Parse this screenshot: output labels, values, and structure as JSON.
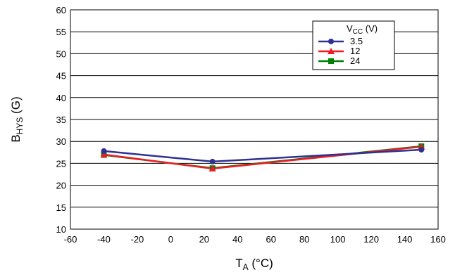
{
  "chart_data": {
    "type": "line",
    "title": "",
    "xlabel": {
      "main": "T",
      "sub": "A",
      "rest": " (°C)"
    },
    "ylabel": {
      "main": "B",
      "sub": "HYS",
      "rest": " (G)"
    },
    "xlim": [
      -60,
      160
    ],
    "ylim": [
      10,
      60
    ],
    "xticks": [
      -60,
      -40,
      -20,
      0,
      20,
      40,
      60,
      80,
      100,
      120,
      140,
      160
    ],
    "yticks": [
      10,
      15,
      20,
      25,
      30,
      35,
      40,
      45,
      50,
      55,
      60
    ],
    "grid": {
      "horizontal": true,
      "vertical": false
    },
    "legend": {
      "position": "top-right",
      "title": {
        "main": "V",
        "sub": "CC",
        "rest": " (V)"
      }
    },
    "x": [
      -40,
      25,
      150
    ],
    "series": [
      {
        "name": "3.5",
        "values": [
          27.8,
          25.4,
          28.1
        ],
        "color": "#2e3192",
        "marker": "circle"
      },
      {
        "name": "12",
        "values": [
          27.0,
          23.8,
          28.8
        ],
        "color": "#ed1c24",
        "marker": "triangle"
      },
      {
        "name": "24",
        "values": [
          26.9,
          23.9,
          28.9
        ],
        "color": "#008000",
        "marker": "square"
      }
    ]
  }
}
